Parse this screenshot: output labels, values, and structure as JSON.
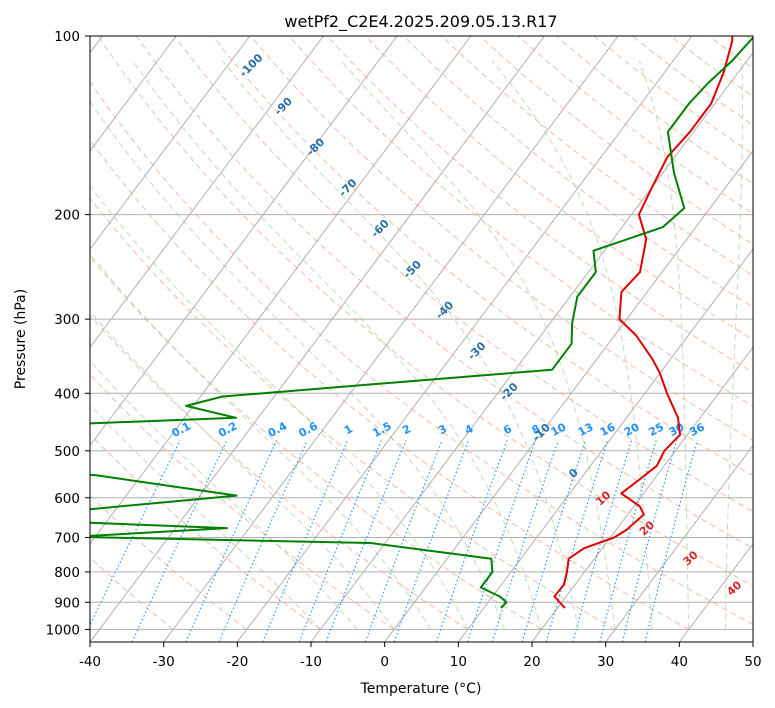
{
  "chart_data": {
    "type": "skew-t",
    "title": "wetPf2_C2E4.2025.209.05.13.R17",
    "xlabel": "Temperature (°C)",
    "ylabel": "Pressure (hPa)",
    "xlim": [
      -40,
      50
    ],
    "ylim": [
      1050,
      100
    ],
    "y_scale": "log",
    "x_ticks": [
      -40,
      -30,
      -20,
      -10,
      0,
      10,
      20,
      30,
      40,
      50
    ],
    "y_ticks": [
      100,
      200,
      300,
      400,
      500,
      600,
      700,
      800,
      900,
      1000
    ],
    "grid": true,
    "colors": {
      "temperature": "#e00000",
      "dewpoint": "#008000",
      "dry_adiabat_labels": "#2a6ea6",
      "mixing_ratio": "#1e90ff",
      "moist_adiabat_labels": "#d62728"
    },
    "dry_adiabat_labels": [
      "-100",
      "-90",
      "-80",
      "-70",
      "-60",
      "-50",
      "-40",
      "-30",
      "-20",
      "-10",
      "0"
    ],
    "mixing_ratio_labels": [
      "0.1",
      "0.2",
      "0.4",
      "0.6",
      "1",
      "1.5",
      "2",
      "3",
      "4",
      "6",
      "8",
      "10",
      "13",
      "16",
      "20",
      "25",
      "30",
      "36"
    ],
    "moist_adiabat_labels": [
      "10",
      "20",
      "30",
      "40"
    ],
    "series": [
      {
        "name": "Temperature",
        "points": [
          [
            21,
            920
          ],
          [
            18.4,
            880
          ],
          [
            18.5,
            840
          ],
          [
            17.6,
            800
          ],
          [
            16.5,
            760
          ],
          [
            17.5,
            730
          ],
          [
            20.5,
            700
          ],
          [
            21.4,
            680
          ],
          [
            22.2,
            640
          ],
          [
            20.8,
            620
          ],
          [
            17,
            590
          ],
          [
            18,
            560
          ],
          [
            19,
            530
          ],
          [
            18.5,
            500
          ],
          [
            19,
            470
          ],
          [
            17,
            440
          ],
          [
            13,
            400
          ],
          [
            10,
            370
          ],
          [
            7.5,
            350
          ],
          [
            3,
            320
          ],
          [
            -1,
            300
          ],
          [
            -3.5,
            270
          ],
          [
            -3,
            250
          ],
          [
            -5.5,
            220
          ],
          [
            -9,
            200
          ],
          [
            -10,
            180
          ],
          [
            -11,
            160
          ],
          [
            -10.5,
            145
          ],
          [
            -10.5,
            130
          ],
          [
            -12,
            115
          ],
          [
            -14,
            102
          ],
          [
            -14.5,
            100
          ]
        ]
      },
      {
        "name": "Dewpoint",
        "points": [
          [
            12.3,
            920
          ],
          [
            12.5,
            900
          ],
          [
            11,
            880
          ],
          [
            7.5,
            850
          ],
          [
            7.5,
            800
          ],
          [
            6,
            760
          ],
          [
            -12,
            715
          ],
          [
            -53,
            698
          ],
          [
            -33,
            675
          ],
          [
            -68,
            650
          ],
          [
            -55,
            630
          ],
          [
            -35,
            595
          ],
          [
            -56,
            550
          ],
          [
            -65,
            540
          ],
          [
            -69,
            453
          ],
          [
            -43,
            440
          ],
          [
            -51,
            420
          ],
          [
            -47,
            405
          ],
          [
            -5,
            365
          ],
          [
            -5,
            330
          ],
          [
            -7,
            305
          ],
          [
            -9,
            275
          ],
          [
            -9,
            250
          ],
          [
            -11.5,
            230
          ],
          [
            -4.5,
            210
          ],
          [
            -3.5,
            195
          ],
          [
            -8.5,
            170
          ],
          [
            -13.5,
            145
          ],
          [
            -13.5,
            130
          ],
          [
            -13,
            120
          ],
          [
            -12,
            110
          ],
          [
            -11.5,
            100
          ]
        ]
      }
    ]
  }
}
